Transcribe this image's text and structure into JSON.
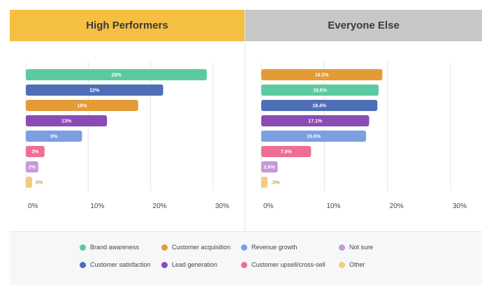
{
  "panels": {
    "left": {
      "title": "High Performers",
      "header_color": "#f5bf42"
    },
    "right": {
      "title": "Everyone Else",
      "header_color": "#c7c7c7"
    }
  },
  "legend": {
    "row1": [
      {
        "label": "Brand awareness",
        "color": "#5ccaa0"
      },
      {
        "label": "Customer acquisition",
        "color": "#e49b36"
      },
      {
        "label": "Revenue growth",
        "color": "#7b9fe0"
      },
      {
        "label": "Not sure",
        "color": "#c49ad9"
      }
    ],
    "row2": [
      {
        "label": "Customer satisfaction",
        "color": "#4e6fb6"
      },
      {
        "label": "Lead generation",
        "color": "#8a4bb5"
      },
      {
        "label": "Customer upsell/cross-sell",
        "color": "#ee6f93"
      },
      {
        "label": "Other",
        "color": "#f3cc7e"
      }
    ]
  },
  "chart_data": [
    {
      "type": "bar",
      "orientation": "horizontal",
      "title": "High Performers",
      "xlim": [
        0,
        30
      ],
      "xticks": [
        "0%",
        "10%",
        "20%",
        "30%"
      ],
      "grid": true,
      "bars": [
        {
          "category": "Brand awareness",
          "value": 29,
          "label": "29%",
          "color": "#5ccaa0",
          "label_color": "#ffffff"
        },
        {
          "category": "Customer satisfaction",
          "value": 22,
          "label": "22%",
          "color": "#4e6fb6",
          "label_color": "#ffffff"
        },
        {
          "category": "Customer acquisition",
          "value": 18,
          "label": "18%",
          "color": "#e49b36",
          "label_color": "#ffffff"
        },
        {
          "category": "Lead generation",
          "value": 13,
          "label": "13%",
          "color": "#8a4bb5",
          "label_color": "#ffffff"
        },
        {
          "category": "Revenue growth",
          "value": 9,
          "label": "9%",
          "color": "#7b9fe0",
          "label_color": "#ffffff"
        },
        {
          "category": "Customer upsell/cross-sell",
          "value": 3,
          "label": "3%",
          "color": "#ee6f93",
          "label_color": "#ffffff"
        },
        {
          "category": "Not sure",
          "value": 2,
          "label": "2%",
          "color": "#c49ad9",
          "label_color": "#ffffff"
        },
        {
          "category": "Other",
          "value": 0,
          "label": "0%",
          "color": "#f3cc7e",
          "label_color": "#c9a24a"
        }
      ]
    },
    {
      "type": "bar",
      "orientation": "horizontal",
      "title": "Everyone Else",
      "xlim": [
        0,
        30
      ],
      "xticks": [
        "0%",
        "10%",
        "20%",
        "30%"
      ],
      "grid": true,
      "bars": [
        {
          "category": "Customer acquisition",
          "value": 19.2,
          "label": "19.2%",
          "color": "#e49b36",
          "label_color": "#ffffff"
        },
        {
          "category": "Brand awareness",
          "value": 18.6,
          "label": "18.6%",
          "color": "#5ccaa0",
          "label_color": "#ffffff"
        },
        {
          "category": "Customer satisfaction",
          "value": 18.4,
          "label": "18.4%",
          "color": "#4e6fb6",
          "label_color": "#ffffff"
        },
        {
          "category": "Lead generation",
          "value": 17.1,
          "label": "17.1%",
          "color": "#8a4bb5",
          "label_color": "#ffffff"
        },
        {
          "category": "Revenue growth",
          "value": 16.6,
          "label": "16.6%",
          "color": "#7b9fe0",
          "label_color": "#ffffff"
        },
        {
          "category": "Customer upsell/cross-sell",
          "value": 7.9,
          "label": "7.9%",
          "color": "#ee6f93",
          "label_color": "#ffffff"
        },
        {
          "category": "Not sure",
          "value": 2.6,
          "label": "2.6%",
          "color": "#c49ad9",
          "label_color": "#ffffff"
        },
        {
          "category": "Other",
          "value": 0.3,
          "label": ".3%",
          "color": "#f3cc7e",
          "label_color": "#c9a24a"
        }
      ]
    }
  ]
}
